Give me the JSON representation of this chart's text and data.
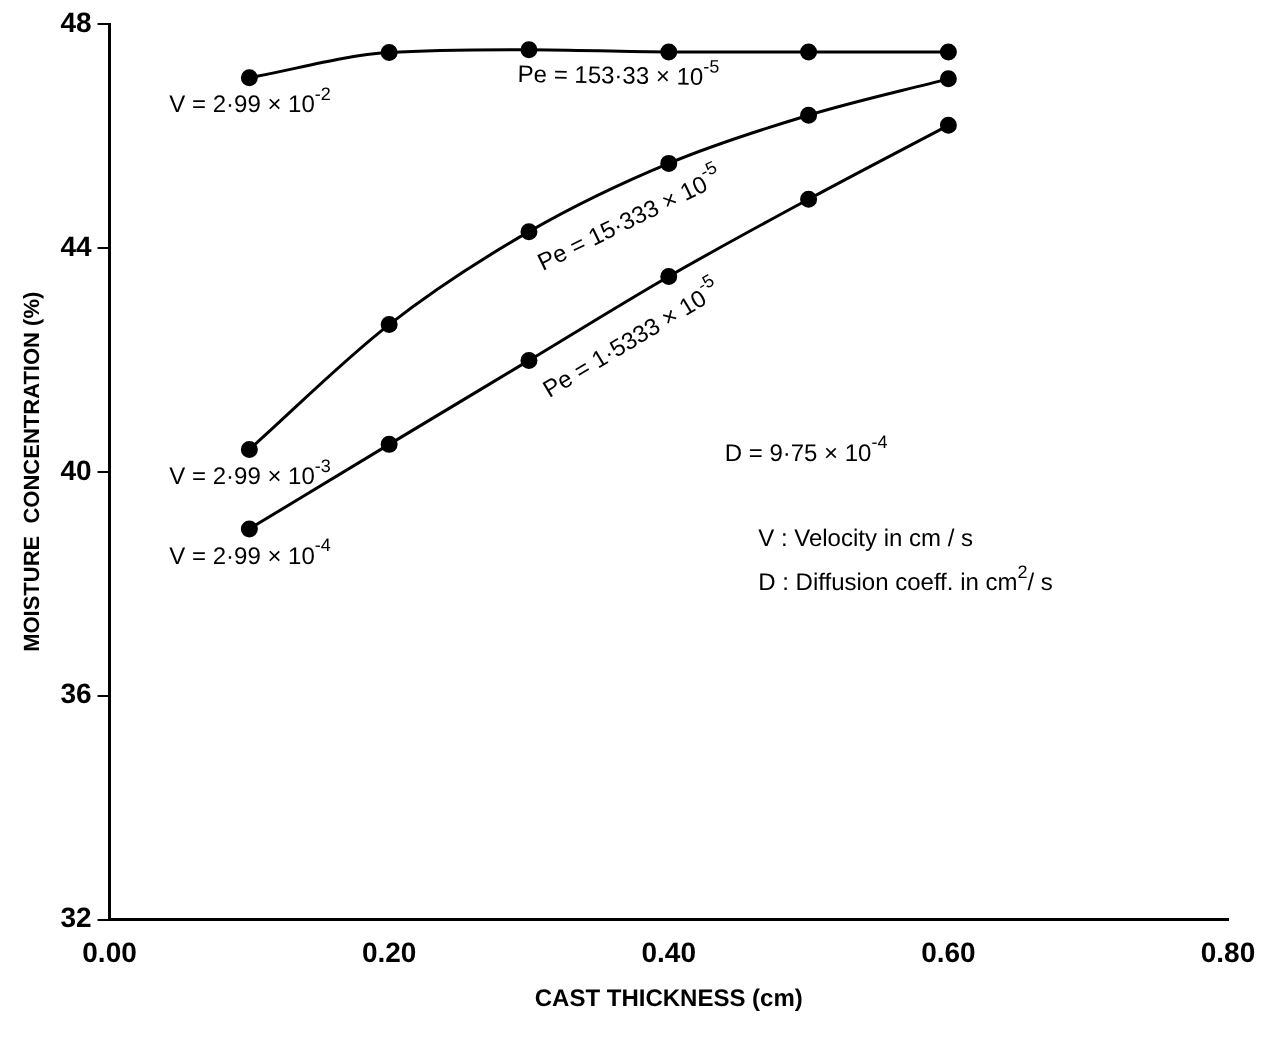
{
  "chart_data": {
    "type": "line",
    "xlabel": "CAST THICKNESS (cm)",
    "ylabel": "MOISTURE  CONCENTRATION (%)",
    "xlim": [
      0,
      0.8
    ],
    "xticks": [
      {
        "value": 0,
        "label": "0.00"
      },
      {
        "value": 0.2,
        "label": "0.20"
      },
      {
        "value": 0.4,
        "label": "0.40"
      },
      {
        "value": 0.6,
        "label": "0.60"
      },
      {
        "value": 0.8,
        "label": "0.80"
      }
    ],
    "ylim": [
      32,
      48
    ],
    "yticks": [
      32,
      36,
      40,
      44,
      48
    ],
    "grid": false,
    "legend": false,
    "marker": "circle",
    "line_style": "solid",
    "series": [
      {
        "name": "Pe = 153·33 × 10$^{-5}$",
        "color": "#000000",
        "x": [
          0.1,
          0.2,
          0.3,
          0.4,
          0.5,
          0.6
        ],
        "values": [
          47.04,
          47.49,
          47.54,
          47.5,
          47.5,
          47.5
        ]
      },
      {
        "name": "Pe = 15·333 × 10$^{-5}$",
        "color": "#000000",
        "x": [
          0.1,
          0.2,
          0.3,
          0.4,
          0.5,
          0.6
        ],
        "values": [
          40.4,
          42.63,
          44.29,
          45.51,
          46.37,
          47.02
        ]
      },
      {
        "name": "Pe = 1·5333 × 10$^{-5}$",
        "color": "#000000",
        "x": [
          0.1,
          0.2,
          0.3,
          0.4,
          0.5,
          0.6
        ],
        "values": [
          38.98,
          40.49,
          41.99,
          43.49,
          44.87,
          46.19
        ]
      }
    ],
    "annotations": [
      "V = 2·99 × 10$^{-2}$",
      "V = 2·99 × 10$^{-3}$",
      "V = 2·99 × 10$^{-4}$",
      "D = 9·75 × 10$^{-4}$",
      "V : Velocity in cm / s",
      "D : Diffusion coeff. in cm$^{2}$/ s"
    ]
  }
}
